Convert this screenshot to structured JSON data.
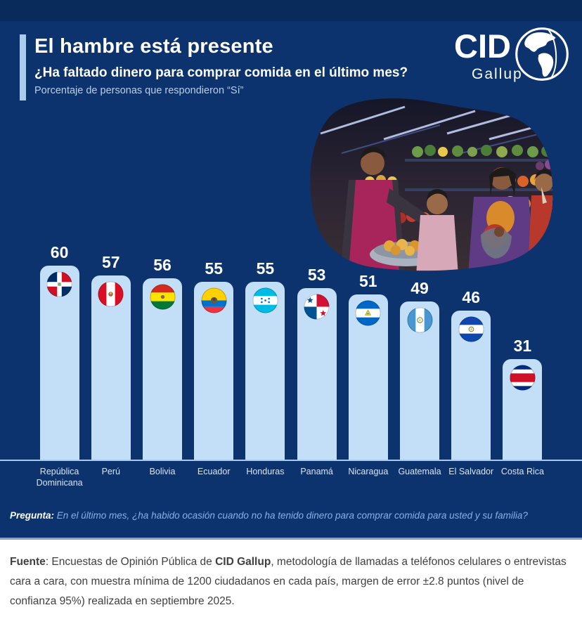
{
  "header": {
    "title": "El hambre está presente",
    "subtitle": "¿Ha faltado dinero para comprar comida en el último mes?",
    "note": "Porcentaje de personas que respondieron “Sí”"
  },
  "logo": {
    "name": "CID",
    "sub": "Gallup",
    "globe_icon": "globe-americas-icon"
  },
  "photo": {
    "description": "market-scene-photo"
  },
  "chart_data": {
    "type": "bar",
    "title": "El hambre está presente",
    "xlabel": "",
    "ylabel": "Porcentaje de personas que respondieron “Sí”",
    "categories": [
      "República Dominicana",
      "Perú",
      "Bolivia",
      "Ecuador",
      "Honduras",
      "Panamá",
      "Nicaragua",
      "Guatemala",
      "El Salvador",
      "Costa Rica"
    ],
    "values": [
      60,
      57,
      56,
      55,
      55,
      53,
      51,
      49,
      46,
      31
    ],
    "flags": [
      "dominican-republic",
      "peru",
      "bolivia",
      "ecuador",
      "honduras",
      "panama",
      "nicaragua",
      "guatemala",
      "el-salvador",
      "costa-rica"
    ],
    "ylim": [
      0,
      65
    ],
    "grid": false,
    "legend": "none",
    "bar_color": "#c3def7",
    "value_label_color": "#ffffff"
  },
  "question": {
    "label": "Pregunta:",
    "text": " En el último mes, ¿ha habido ocasión cuando no ha tenido dinero para comprar comida para usted y su familia?"
  },
  "footer": {
    "label": "Fuente",
    "text_before_brand": ": Encuestas de Opinión Pública de ",
    "brand": "CID Gallup",
    "text_after_brand": ", metodología de llamadas a teléfonos celulares o entrevistas cara a cara, con muestra mínima de 1200 ciudadanos en cada país, margen de error ±2.8 puntos (nivel de confianza 95%) realizada en septiembre 2025."
  },
  "colors": {
    "background": "#0c336d",
    "top_band": "#092b5c",
    "accent_bar": "#a9cdf0",
    "bar": "#c3def7",
    "baseline": "#a9c9ec",
    "category_label": "#d5e5f7",
    "question_text": "#86b1e6",
    "footer_bg": "#ffffff",
    "footer_text": "#3f3f3f"
  }
}
